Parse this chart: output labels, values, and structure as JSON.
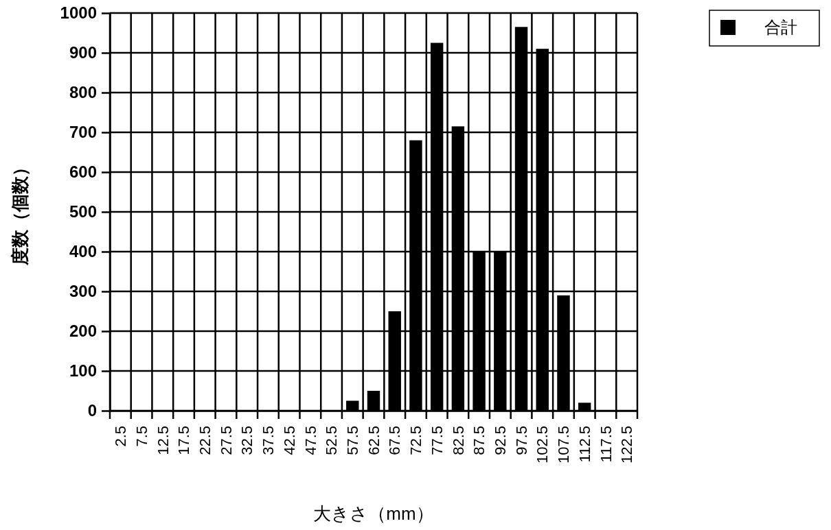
{
  "chart_data": {
    "type": "bar",
    "xlabel": "大きさ（mm）",
    "ylabel": "度数（個数）",
    "categories": [
      "2.5",
      "7.5",
      "12.5",
      "17.5",
      "22.5",
      "27.5",
      "32.5",
      "37.5",
      "42.5",
      "47.5",
      "52.5",
      "57.5",
      "62.5",
      "67.5",
      "72.5",
      "77.5",
      "82.5",
      "87.5",
      "92.5",
      "97.5",
      "102.5",
      "107.5",
      "112.5",
      "117.5",
      "122.5"
    ],
    "series": [
      {
        "name": "合計",
        "color": "#000000",
        "values": [
          0,
          0,
          0,
          0,
          0,
          0,
          0,
          0,
          0,
          0,
          0,
          25,
          50,
          250,
          680,
          925,
          715,
          400,
          400,
          965,
          910,
          290,
          20,
          0,
          0
        ]
      }
    ],
    "ylim": [
      0,
      1000
    ],
    "yticks": [
      0,
      100,
      200,
      300,
      400,
      500,
      600,
      700,
      800,
      900,
      1000
    ],
    "grid": true,
    "legend": "top right"
  }
}
